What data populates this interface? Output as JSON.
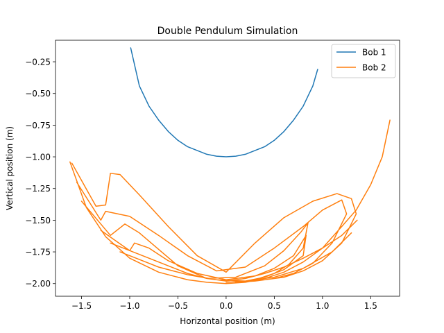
{
  "chart_data": {
    "type": "line",
    "title": "Double Pendulum Simulation",
    "xlabel": "Horizontal position (m)",
    "ylabel": "Vertical position (m)",
    "xlim": [
      -1.77,
      1.8
    ],
    "ylim": [
      -2.1,
      -0.08
    ],
    "xticks": [
      -1.5,
      -1.0,
      -0.5,
      0.0,
      0.5,
      1.0,
      1.5
    ],
    "xtick_labels": [
      "−1.5",
      "−1.0",
      "−0.5",
      "0.0",
      "0.5",
      "1.0",
      "1.5"
    ],
    "yticks": [
      -0.25,
      -0.5,
      -0.75,
      -1.0,
      -1.25,
      -1.5,
      -1.75,
      -2.0
    ],
    "ytick_labels": [
      "−0.25",
      "−0.50",
      "−0.75",
      "−1.00",
      "−1.25",
      "−1.50",
      "−1.75",
      "−2.00"
    ],
    "grid": false,
    "legend_position": "top-right",
    "series": [
      {
        "name": "Bob 1",
        "color": "#1f77b4",
        "x": [
          -0.99,
          -0.9,
          -0.8,
          -0.7,
          -0.6,
          -0.5,
          -0.4,
          -0.3,
          -0.2,
          -0.1,
          0.0,
          0.1,
          0.2,
          0.3,
          0.4,
          0.5,
          0.6,
          0.7,
          0.8,
          0.9,
          0.95
        ],
        "y": [
          -0.14,
          -0.44,
          -0.6,
          -0.71,
          -0.8,
          -0.87,
          -0.92,
          -0.95,
          -0.98,
          -0.995,
          -1.0,
          -0.995,
          -0.98,
          -0.95,
          -0.92,
          -0.87,
          -0.8,
          -0.71,
          -0.6,
          -0.44,
          -0.31
        ]
      },
      {
        "name": "Bob 2",
        "color": "#ff7f0e",
        "x": [
          -1.62,
          -1.45,
          -1.25,
          -1.0,
          -0.7,
          -0.4,
          -0.2,
          0.0,
          0.2,
          0.4,
          0.6,
          0.8,
          1.0,
          1.2,
          1.35,
          1.5,
          1.62,
          1.7,
          null,
          -1.6,
          -1.35,
          -1.25,
          -1.2,
          -1.1,
          -0.9,
          -0.6,
          -0.3,
          0.0,
          0.3,
          0.6,
          0.9,
          1.15,
          1.3,
          1.35,
          1.2,
          1.0,
          0.8,
          0.6,
          0.4,
          0.2,
          0.0,
          null,
          -1.55,
          -1.3,
          -1.25,
          -1.0,
          -0.7,
          -0.4,
          -0.1,
          0.2,
          0.5,
          0.8,
          1.0,
          1.2,
          1.25,
          1.1,
          0.9,
          0.7,
          0.5,
          0.3,
          0.1,
          null,
          -1.5,
          -1.2,
          -1.05,
          -0.9,
          -0.7,
          -0.5,
          -0.2,
          0.1,
          0.4,
          0.6,
          0.78,
          0.85,
          0.8,
          0.65,
          0.5,
          0.3,
          null,
          -1.3,
          -1.0,
          -0.95,
          -0.8,
          -0.6,
          -0.3,
          0.0,
          0.3,
          0.5,
          0.7,
          0.83,
          0.8,
          0.6,
          0.4,
          0.2,
          null,
          -1.2,
          -0.8,
          -0.6,
          -0.4,
          -0.2,
          0.0,
          0.2,
          0.4,
          0.6,
          0.8,
          1.0,
          1.2,
          1.36,
          null,
          -1.1,
          -0.7,
          -0.4,
          -0.1,
          0.2,
          0.5,
          0.8,
          1.1,
          1.3
        ],
        "y": [
          -1.04,
          -1.4,
          -1.63,
          -1.8,
          -1.91,
          -1.97,
          -1.99,
          -2.0,
          -1.99,
          -1.96,
          -1.91,
          -1.83,
          -1.72,
          -1.55,
          -1.42,
          -1.22,
          -1.0,
          -0.71,
          null,
          -1.05,
          -1.39,
          -1.38,
          -1.13,
          -1.14,
          -1.3,
          -1.55,
          -1.78,
          -1.91,
          -1.68,
          -1.48,
          -1.35,
          -1.29,
          -1.33,
          -1.45,
          -1.68,
          -1.82,
          -1.9,
          -1.95,
          -1.97,
          -1.98,
          -1.99,
          null,
          -1.2,
          -1.5,
          -1.43,
          -1.47,
          -1.62,
          -1.78,
          -1.9,
          -1.87,
          -1.72,
          -1.55,
          -1.42,
          -1.34,
          -1.45,
          -1.68,
          -1.84,
          -1.92,
          -1.96,
          -1.98,
          -1.99,
          null,
          -1.35,
          -1.62,
          -1.53,
          -1.6,
          -1.73,
          -1.86,
          -1.96,
          -1.95,
          -1.86,
          -1.74,
          -1.59,
          -1.52,
          -1.72,
          -1.85,
          -1.92,
          -1.97,
          null,
          -1.58,
          -1.74,
          -1.68,
          -1.72,
          -1.82,
          -1.92,
          -1.97,
          -1.94,
          -1.88,
          -1.78,
          -1.62,
          -1.78,
          -1.89,
          -1.95,
          -1.98,
          null,
          -1.68,
          -1.8,
          -1.86,
          -1.92,
          -1.96,
          -1.98,
          -1.96,
          -1.92,
          -1.87,
          -1.8,
          -1.72,
          -1.62,
          -1.5,
          null,
          -1.75,
          -1.87,
          -1.93,
          -1.97,
          -1.98,
          -1.95,
          -1.88,
          -1.75,
          -1.6
        ]
      }
    ]
  }
}
